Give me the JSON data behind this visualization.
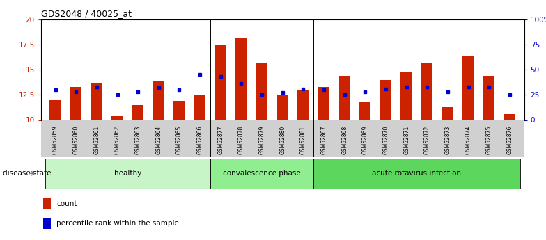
{
  "title": "GDS2048 / 40025_at",
  "samples": [
    "GSM52859",
    "GSM52860",
    "GSM52861",
    "GSM52862",
    "GSM52863",
    "GSM52864",
    "GSM52865",
    "GSM52866",
    "GSM52877",
    "GSM52878",
    "GSM52879",
    "GSM52880",
    "GSM52881",
    "GSM52867",
    "GSM52868",
    "GSM52869",
    "GSM52870",
    "GSM52871",
    "GSM52872",
    "GSM52873",
    "GSM52874",
    "GSM52875",
    "GSM52876"
  ],
  "count_values": [
    12.0,
    13.3,
    13.7,
    10.4,
    11.5,
    13.9,
    11.9,
    12.5,
    17.5,
    18.2,
    15.6,
    12.5,
    12.9,
    13.3,
    14.4,
    11.8,
    14.0,
    14.8,
    15.6,
    11.3,
    16.4,
    14.4,
    10.6
  ],
  "percentile_values": [
    13.0,
    12.8,
    13.3,
    12.5,
    12.8,
    13.2,
    13.0,
    14.5,
    14.3,
    13.6,
    12.55,
    12.7,
    13.1,
    13.0,
    12.55,
    12.8,
    13.1,
    13.3,
    13.3,
    12.8,
    13.3,
    13.3,
    12.55
  ],
  "groups": [
    {
      "label": "healthy",
      "start": 0,
      "end": 8
    },
    {
      "label": "convalescence phase",
      "start": 8,
      "end": 13
    },
    {
      "label": "acute rotavirus infection",
      "start": 13,
      "end": 23
    }
  ],
  "group_colors": [
    "#c8f5c8",
    "#90ee90",
    "#5cd65c"
  ],
  "ylim_left": [
    10,
    20
  ],
  "ylim_right": [
    0,
    100
  ],
  "yticks_left": [
    10,
    12.5,
    15,
    17.5,
    20
  ],
  "ytick_labels_left": [
    "10",
    "12.5",
    "15",
    "17.5",
    "20"
  ],
  "yticks_right": [
    0,
    25,
    50,
    75,
    100
  ],
  "ytick_labels_right": [
    "0",
    "25",
    "50",
    "75",
    "100%"
  ],
  "hlines": [
    12.5,
    15,
    17.5
  ],
  "bar_color": "#cc2200",
  "dot_color": "#0000cc",
  "bg_color": "#ffffff",
  "disease_state_label": "disease state",
  "legend_count": "count",
  "legend_percentile": "percentile rank within the sample",
  "group_sep": [
    7.5,
    12.5
  ]
}
